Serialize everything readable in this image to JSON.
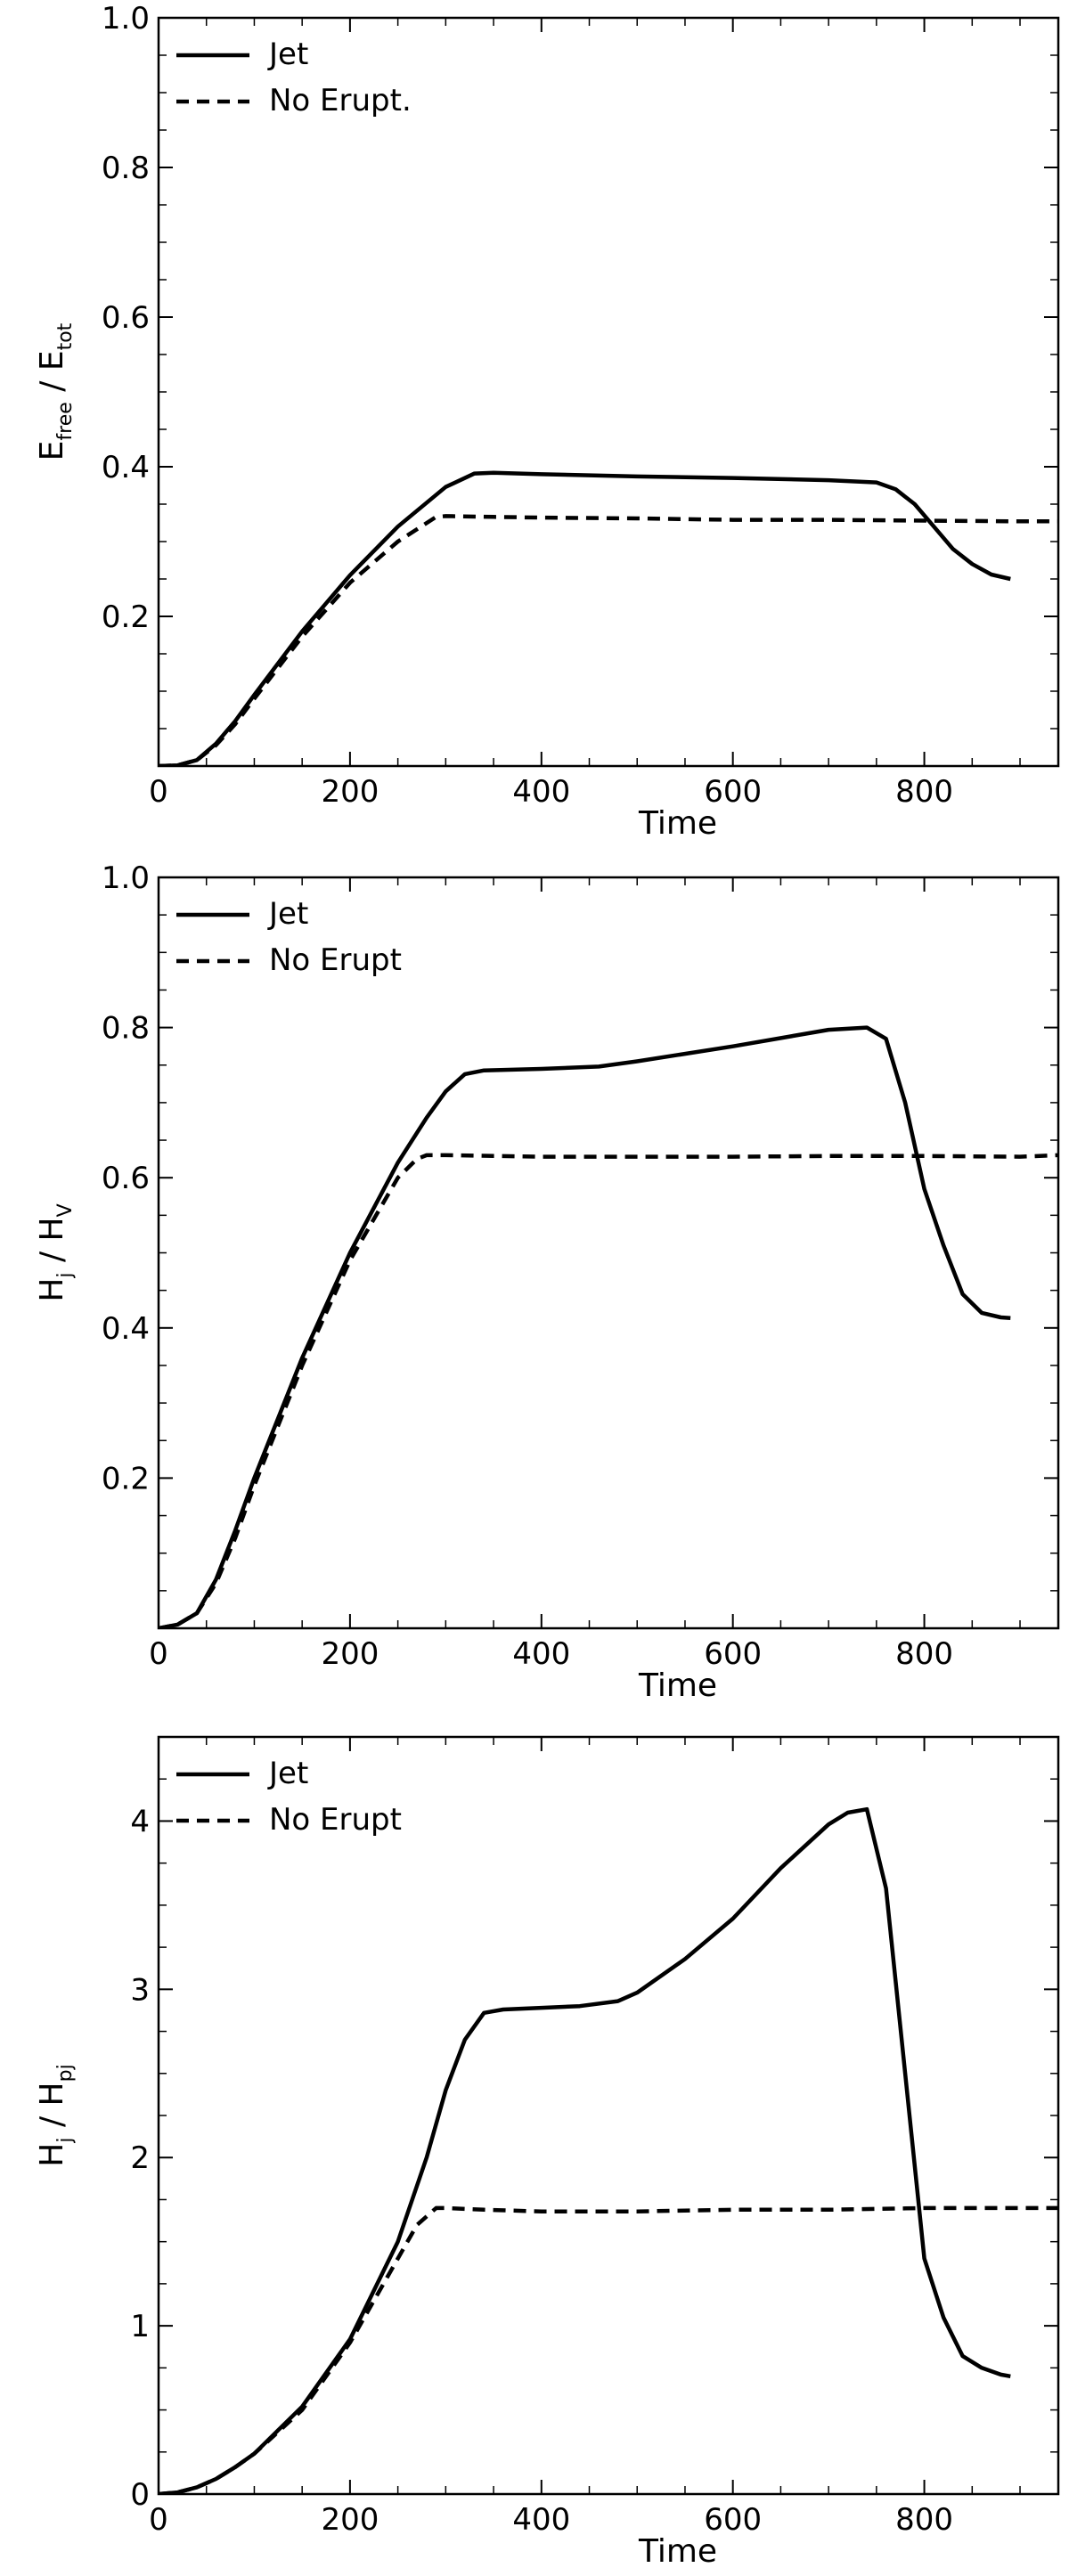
{
  "chart_data": [
    {
      "type": "line",
      "xlabel": "Time",
      "ylabel": {
        "main": "E",
        "sub": "free",
        "sep": " / ",
        "main2": "E",
        "sub2": "tot"
      },
      "xlim": [
        0,
        940
      ],
      "ylim": [
        0,
        1.0
      ],
      "xticks": [
        0,
        200,
        400,
        600,
        800
      ],
      "xtick_labels": [
        "0",
        "200",
        "400",
        "600",
        "800"
      ],
      "yticks": [
        0.2,
        0.4,
        0.6,
        0.8,
        1.0
      ],
      "ytick_labels": [
        "0.2",
        "0.4",
        "0.6",
        "0.8",
        "1.0"
      ],
      "legend_position": "top-left",
      "series": [
        {
          "name": "Jet",
          "style": "solid",
          "x": [
            0,
            20,
            40,
            60,
            80,
            100,
            150,
            200,
            250,
            300,
            330,
            350,
            400,
            500,
            600,
            700,
            750,
            770,
            790,
            810,
            830,
            850,
            870,
            890
          ],
          "y": [
            0,
            0.001,
            0.008,
            0.03,
            0.06,
            0.095,
            0.18,
            0.255,
            0.32,
            0.373,
            0.391,
            0.392,
            0.39,
            0.387,
            0.385,
            0.382,
            0.379,
            0.37,
            0.35,
            0.32,
            0.29,
            0.27,
            0.256,
            0.25
          ]
        },
        {
          "name": "No Erupt.",
          "style": "dashed",
          "x": [
            0,
            20,
            40,
            60,
            80,
            100,
            150,
            200,
            250,
            290,
            300,
            350,
            400,
            500,
            600,
            700,
            800,
            900,
            940
          ],
          "y": [
            0,
            0.001,
            0.008,
            0.028,
            0.056,
            0.09,
            0.173,
            0.245,
            0.3,
            0.333,
            0.334,
            0.333,
            0.332,
            0.331,
            0.329,
            0.329,
            0.328,
            0.327,
            0.327
          ]
        }
      ]
    },
    {
      "type": "line",
      "xlabel": "Time",
      "ylabel": {
        "main": "H",
        "sub": "j",
        "sep": " / ",
        "main2": "H",
        "sub2": "V"
      },
      "xlim": [
        0,
        940
      ],
      "ylim": [
        0,
        1.0
      ],
      "xticks": [
        0,
        200,
        400,
        600,
        800
      ],
      "xtick_labels": [
        "0",
        "200",
        "400",
        "600",
        "800"
      ],
      "yticks": [
        0.2,
        0.4,
        0.6,
        0.8,
        1.0
      ],
      "ytick_labels": [
        "0.2",
        "0.4",
        "0.6",
        "0.8",
        "1.0"
      ],
      "legend_position": "top-left",
      "series": [
        {
          "name": "Jet",
          "style": "solid",
          "x": [
            0,
            20,
            40,
            60,
            80,
            100,
            150,
            200,
            250,
            280,
            300,
            320,
            340,
            400,
            460,
            500,
            600,
            700,
            740,
            760,
            780,
            800,
            820,
            840,
            860,
            880,
            890
          ],
          "y": [
            0,
            0.005,
            0.02,
            0.065,
            0.13,
            0.2,
            0.36,
            0.5,
            0.62,
            0.68,
            0.715,
            0.738,
            0.743,
            0.745,
            0.748,
            0.755,
            0.775,
            0.797,
            0.8,
            0.785,
            0.7,
            0.585,
            0.51,
            0.445,
            0.42,
            0.414,
            0.413
          ]
        },
        {
          "name": "No Erupt",
          "style": "dashed",
          "x": [
            0,
            20,
            40,
            60,
            80,
            100,
            150,
            200,
            250,
            270,
            280,
            300,
            400,
            500,
            600,
            700,
            800,
            900,
            940
          ],
          "y": [
            0,
            0.005,
            0.02,
            0.06,
            0.12,
            0.19,
            0.35,
            0.49,
            0.6,
            0.625,
            0.63,
            0.63,
            0.628,
            0.628,
            0.628,
            0.629,
            0.629,
            0.628,
            0.63
          ]
        }
      ]
    },
    {
      "type": "line",
      "xlabel": "Time",
      "ylabel": {
        "main": "H",
        "sub": "j",
        "sep": " / ",
        "main2": "H",
        "sub2": "pj"
      },
      "xlim": [
        0,
        940
      ],
      "ylim": [
        0,
        4.5
      ],
      "xticks": [
        0,
        200,
        400,
        600,
        800
      ],
      "xtick_labels": [
        "0",
        "200",
        "400",
        "600",
        "800"
      ],
      "yticks": [
        0,
        1,
        2,
        3,
        4
      ],
      "ytick_labels": [
        "0",
        "1",
        "2",
        "3",
        "4"
      ],
      "legend_position": "top-left",
      "series": [
        {
          "name": "Jet",
          "style": "solid",
          "x": [
            0,
            20,
            40,
            60,
            80,
            100,
            150,
            200,
            250,
            280,
            300,
            320,
            340,
            360,
            400,
            440,
            480,
            500,
            550,
            600,
            650,
            700,
            720,
            740,
            760,
            780,
            800,
            820,
            840,
            860,
            880,
            890
          ],
          "y": [
            0,
            0.01,
            0.04,
            0.09,
            0.16,
            0.24,
            0.52,
            0.92,
            1.5,
            2.0,
            2.4,
            2.7,
            2.86,
            2.88,
            2.89,
            2.9,
            2.93,
            2.98,
            3.18,
            3.42,
            3.72,
            3.98,
            4.05,
            4.07,
            3.6,
            2.5,
            1.4,
            1.05,
            0.82,
            0.75,
            0.71,
            0.7
          ]
        },
        {
          "name": "No Erupt",
          "style": "dashed",
          "x": [
            0,
            20,
            40,
            60,
            80,
            100,
            150,
            200,
            250,
            270,
            290,
            300,
            340,
            400,
            450,
            500,
            600,
            700,
            800,
            900,
            940
          ],
          "y": [
            0,
            0.01,
            0.04,
            0.09,
            0.16,
            0.24,
            0.5,
            0.9,
            1.4,
            1.6,
            1.7,
            1.7,
            1.69,
            1.68,
            1.68,
            1.68,
            1.69,
            1.69,
            1.7,
            1.7,
            1.7
          ]
        }
      ]
    }
  ]
}
